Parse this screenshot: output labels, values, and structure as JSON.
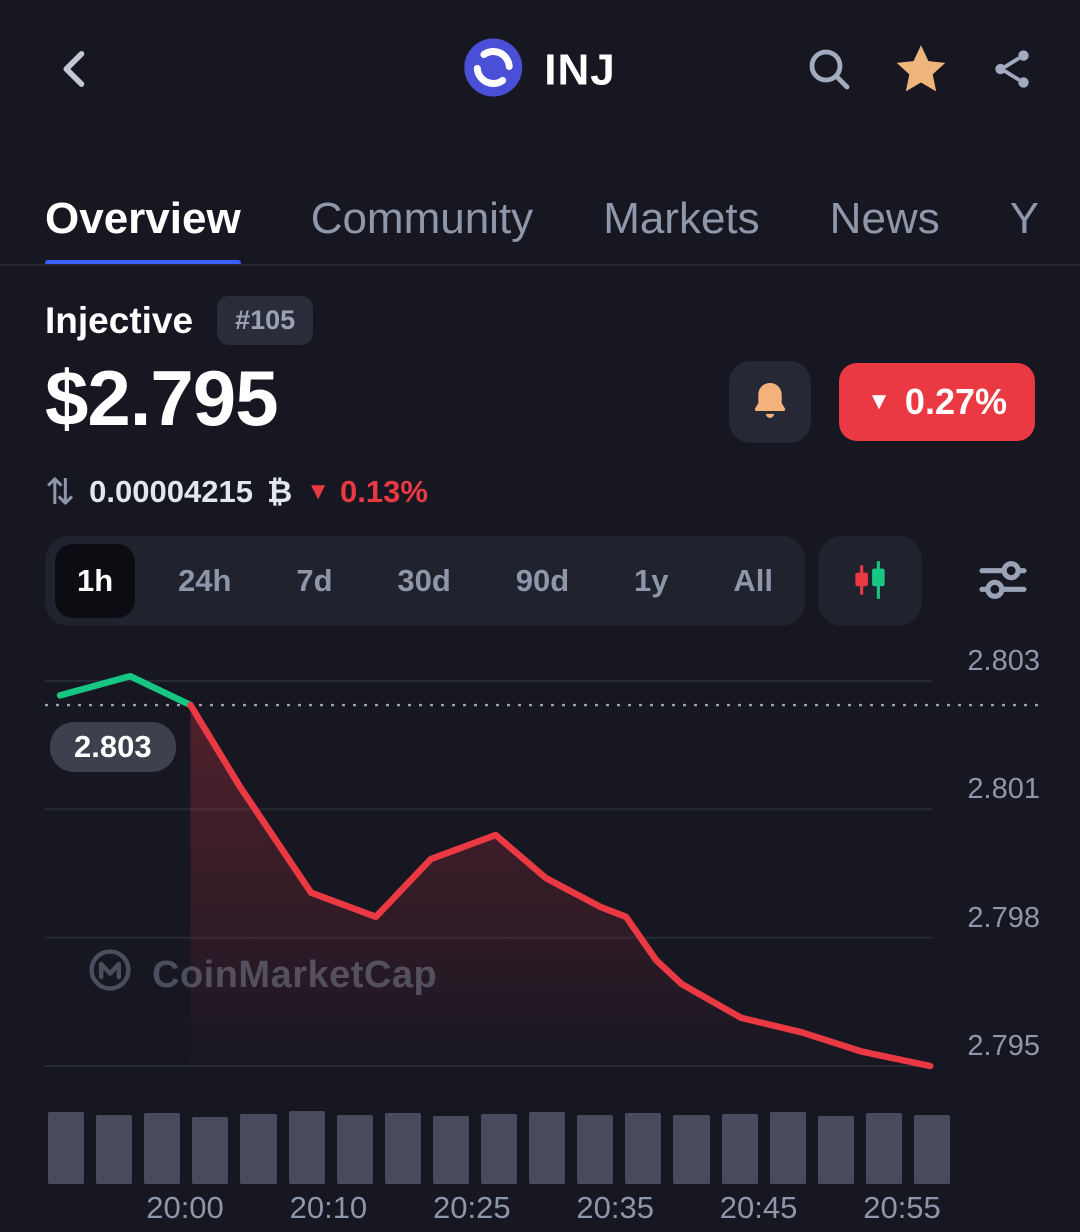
{
  "header": {
    "symbol": "INJ"
  },
  "tabs": [
    {
      "label": "Overview",
      "active": true
    },
    {
      "label": "Community"
    },
    {
      "label": "Markets"
    },
    {
      "label": "News"
    },
    {
      "label": "Y"
    }
  ],
  "coin": {
    "name": "Injective",
    "rank": "#105",
    "price": "$2.795",
    "change_24h": "0.27%",
    "btc_value": "0.00004215",
    "btc_symbol": "₿",
    "btc_change": "0.13%"
  },
  "range_selector": {
    "options": [
      "1h",
      "24h",
      "7d",
      "30d",
      "90d",
      "1y",
      "All"
    ],
    "active": "1h"
  },
  "chart_data": {
    "type": "line",
    "title": "INJ price (1h view)",
    "y_tick_labels": [
      "2.803",
      "2.801",
      "2.798",
      "2.795"
    ],
    "y_axis": {
      "top_value": 2.803,
      "bottom_value": 2.795
    },
    "prev_close": 2.8025,
    "prev_close_label": "2.803",
    "x_labels": [
      "20:00",
      "20:10",
      "20:25",
      "20:35",
      "20:45",
      "20:55"
    ],
    "watermark": "CoinMarketCap",
    "series": {
      "green": [
        [
          0.017,
          2.8027
        ],
        [
          0.096,
          2.8031
        ],
        [
          0.164,
          2.8025
        ]
      ],
      "red": [
        [
          0.164,
          2.8025
        ],
        [
          0.22,
          2.8008
        ],
        [
          0.3,
          2.7986
        ],
        [
          0.373,
          2.7981
        ],
        [
          0.435,
          2.7993
        ],
        [
          0.508,
          2.7998
        ],
        [
          0.565,
          2.7989
        ],
        [
          0.627,
          2.7983
        ],
        [
          0.655,
          2.7981
        ],
        [
          0.689,
          2.7972
        ],
        [
          0.718,
          2.7967
        ],
        [
          0.785,
          2.796
        ],
        [
          0.853,
          2.7957
        ],
        [
          0.921,
          2.7953
        ],
        [
          0.998,
          2.795
        ]
      ]
    },
    "volume": [
      92,
      88,
      91,
      86,
      90,
      93,
      88,
      91,
      87,
      90,
      92,
      89,
      91,
      88,
      90,
      92,
      87,
      91,
      89
    ]
  },
  "colors": {
    "green": "#16c784",
    "red": "#ea3943",
    "blue": "#3861fb",
    "orange": "#f2b279"
  }
}
